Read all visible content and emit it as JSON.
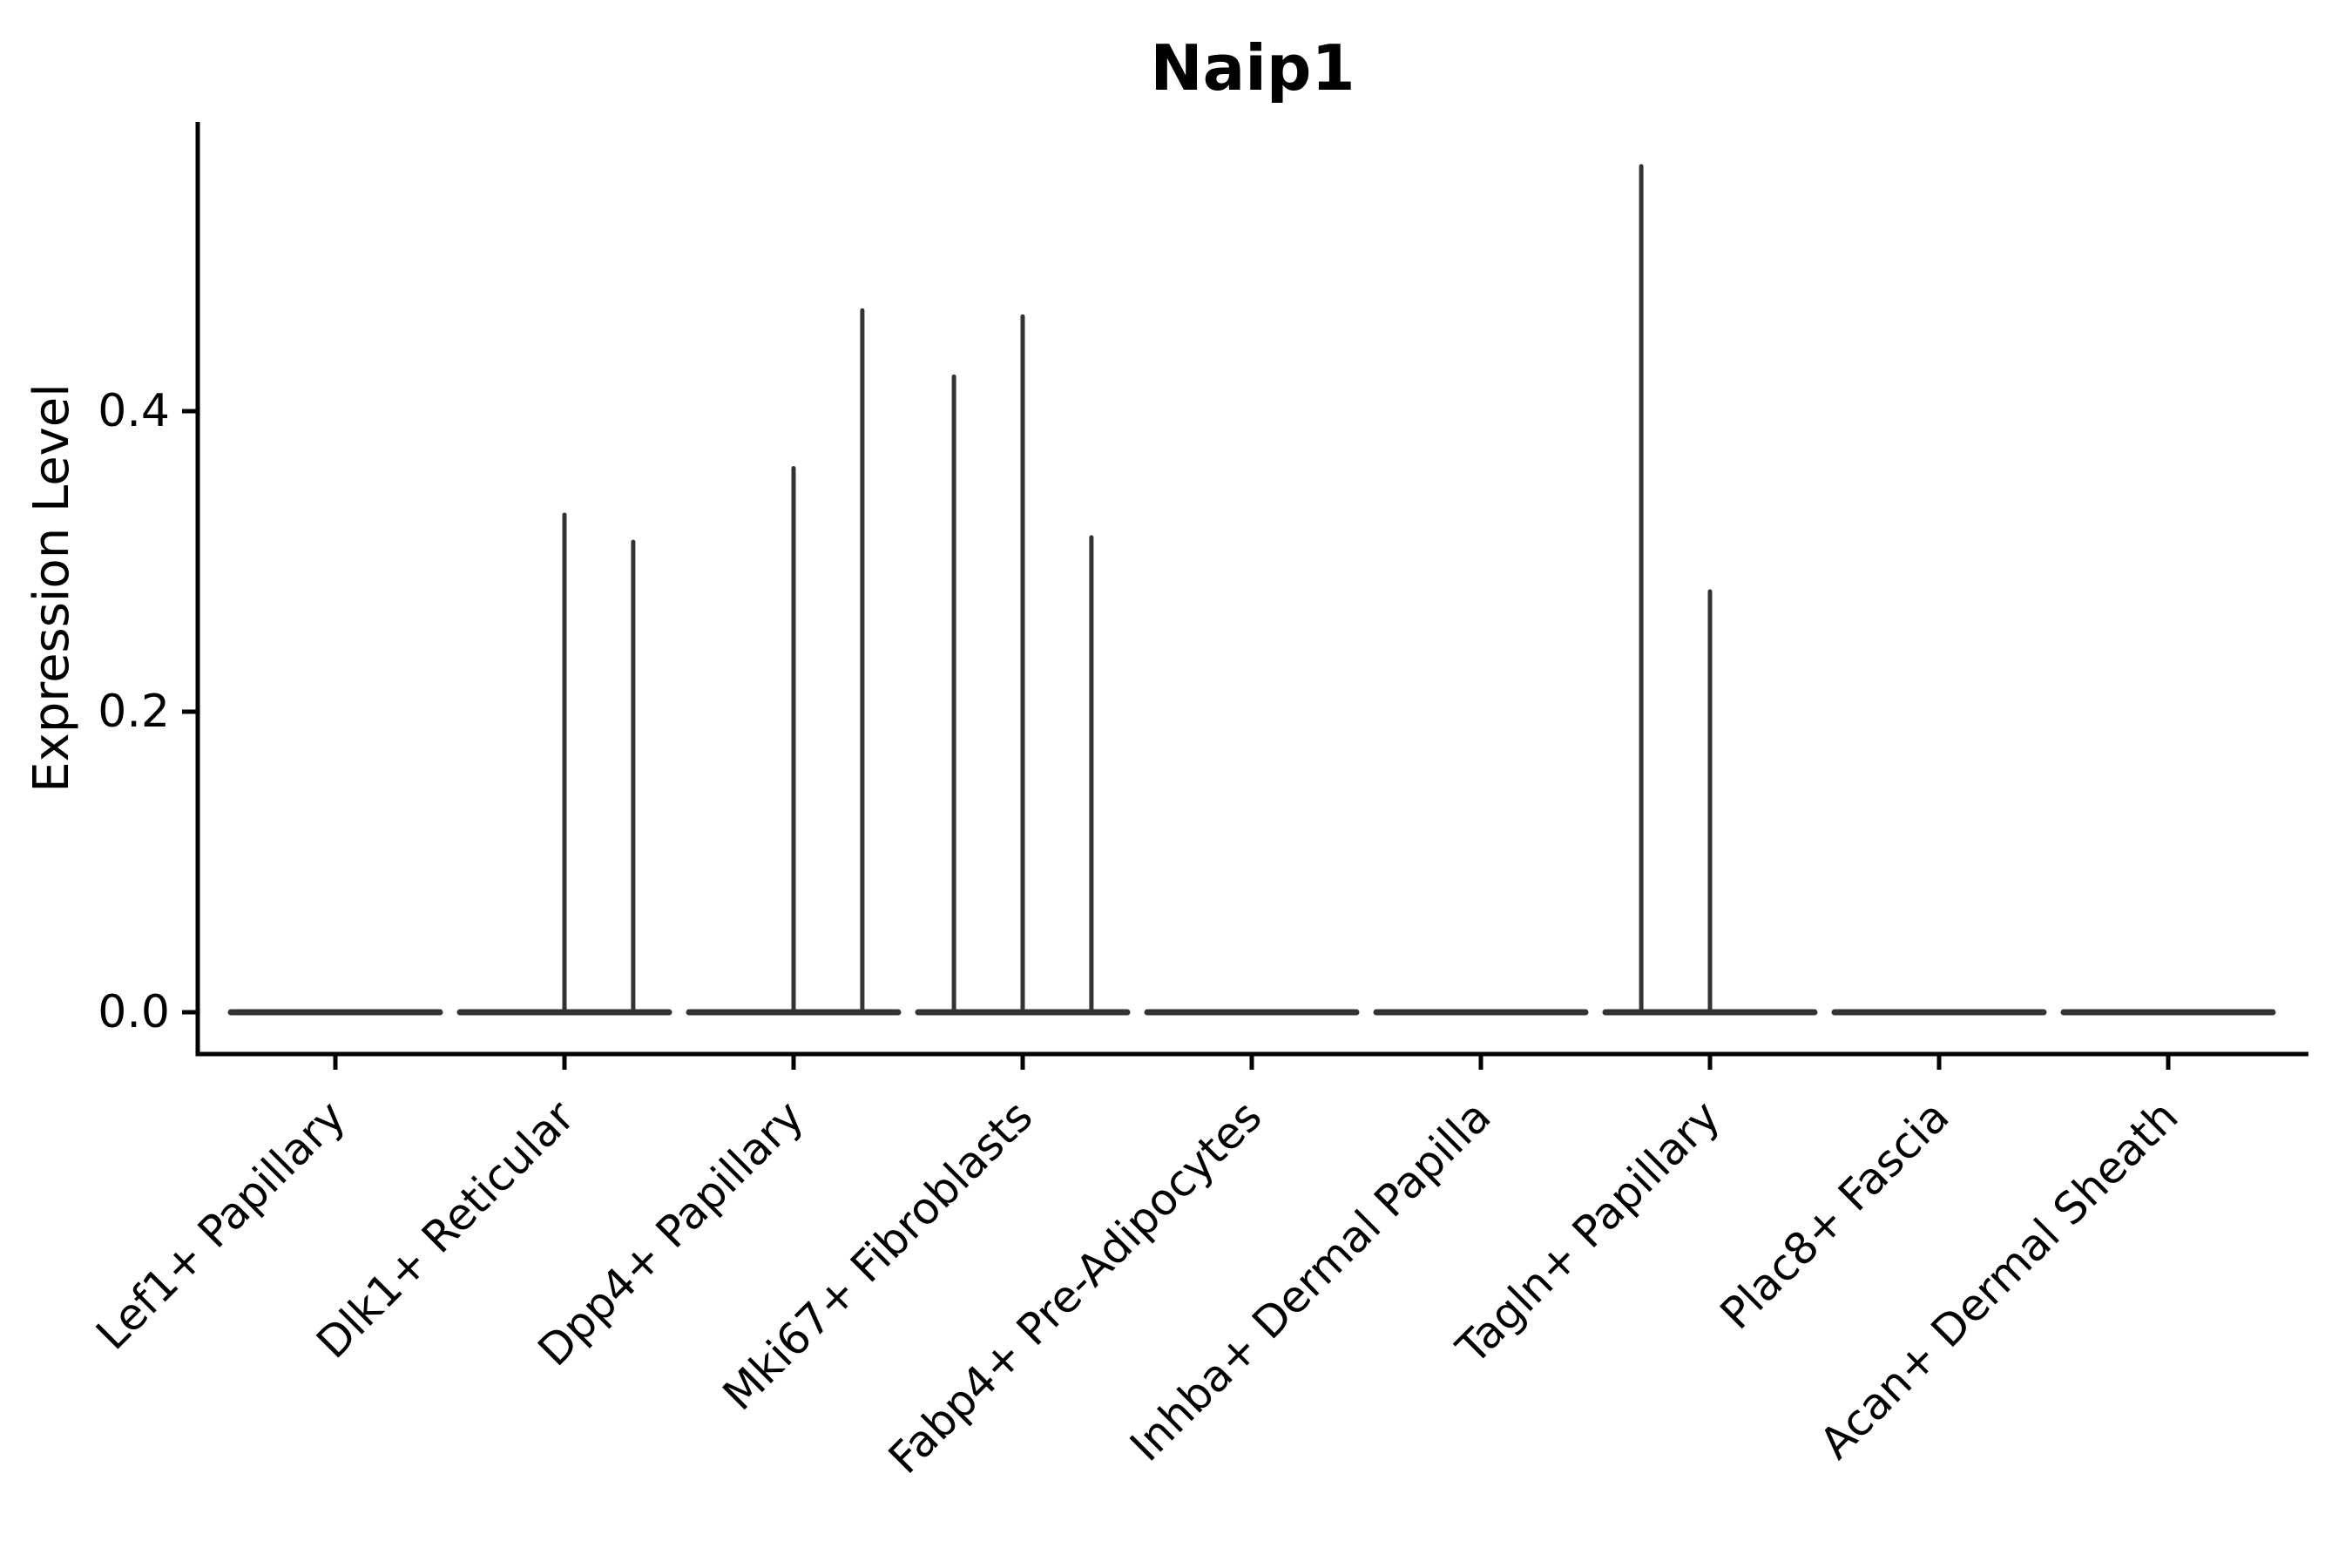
{
  "title": "Naip1",
  "ylabel": "Expression Level",
  "colors": {
    "violin_stroke": "#333333",
    "axis": "#000000",
    "background": "#ffffff"
  },
  "chart_data": {
    "type": "violin",
    "title": "Naip1",
    "xlabel": "",
    "ylabel": "Expression Level",
    "ylim": [
      0,
      0.59
    ],
    "ytick_values": [
      0.0,
      0.2,
      0.4
    ],
    "ytick_labels": [
      "0.0",
      "0.2",
      "0.4"
    ],
    "grid": false,
    "legend": false,
    "x_label_rotation_deg": 45,
    "categories": [
      "Lef1+ Papillary",
      "Dlk1+ Reticular",
      "Dpp4+ Papillary",
      "Mki67+ Fibroblasts",
      "Fabp4+ Pre-Adipocytes",
      "Inhba+ Dermal Papilla",
      "Tagln+ Papillary",
      "Plac8+ Fascia",
      "Acan+ Dermal Sheath"
    ],
    "series": [
      {
        "name": "Lef1+ Papillary",
        "baseline_value": 0.0,
        "spikes": []
      },
      {
        "name": "Dlk1+ Reticular",
        "baseline_value": 0.0,
        "spikes": [
          {
            "offset": 0.0,
            "value": 0.331
          },
          {
            "offset": 0.3,
            "value": 0.313
          }
        ]
      },
      {
        "name": "Dpp4+ Papillary",
        "baseline_value": 0.0,
        "spikes": [
          {
            "offset": 0.0,
            "value": 0.362
          },
          {
            "offset": 0.3,
            "value": 0.467
          }
        ]
      },
      {
        "name": "Mki67+ Fibroblasts",
        "baseline_value": 0.0,
        "spikes": [
          {
            "offset": -0.3,
            "value": 0.423
          },
          {
            "offset": 0.0,
            "value": 0.463
          },
          {
            "offset": 0.3,
            "value": 0.316
          }
        ]
      },
      {
        "name": "Fabp4+ Pre-Adipocytes",
        "baseline_value": 0.0,
        "spikes": []
      },
      {
        "name": "Inhba+ Dermal Papilla",
        "baseline_value": 0.0,
        "spikes": []
      },
      {
        "name": "Tagln+ Papillary",
        "baseline_value": 0.0,
        "spikes": [
          {
            "offset": -0.3,
            "value": 0.563
          },
          {
            "offset": 0.0,
            "value": 0.28
          }
        ]
      },
      {
        "name": "Plac8+ Fascia",
        "baseline_value": 0.0,
        "spikes": []
      },
      {
        "name": "Acan+ Dermal Sheath",
        "baseline_value": 0.0,
        "spikes": []
      }
    ]
  }
}
